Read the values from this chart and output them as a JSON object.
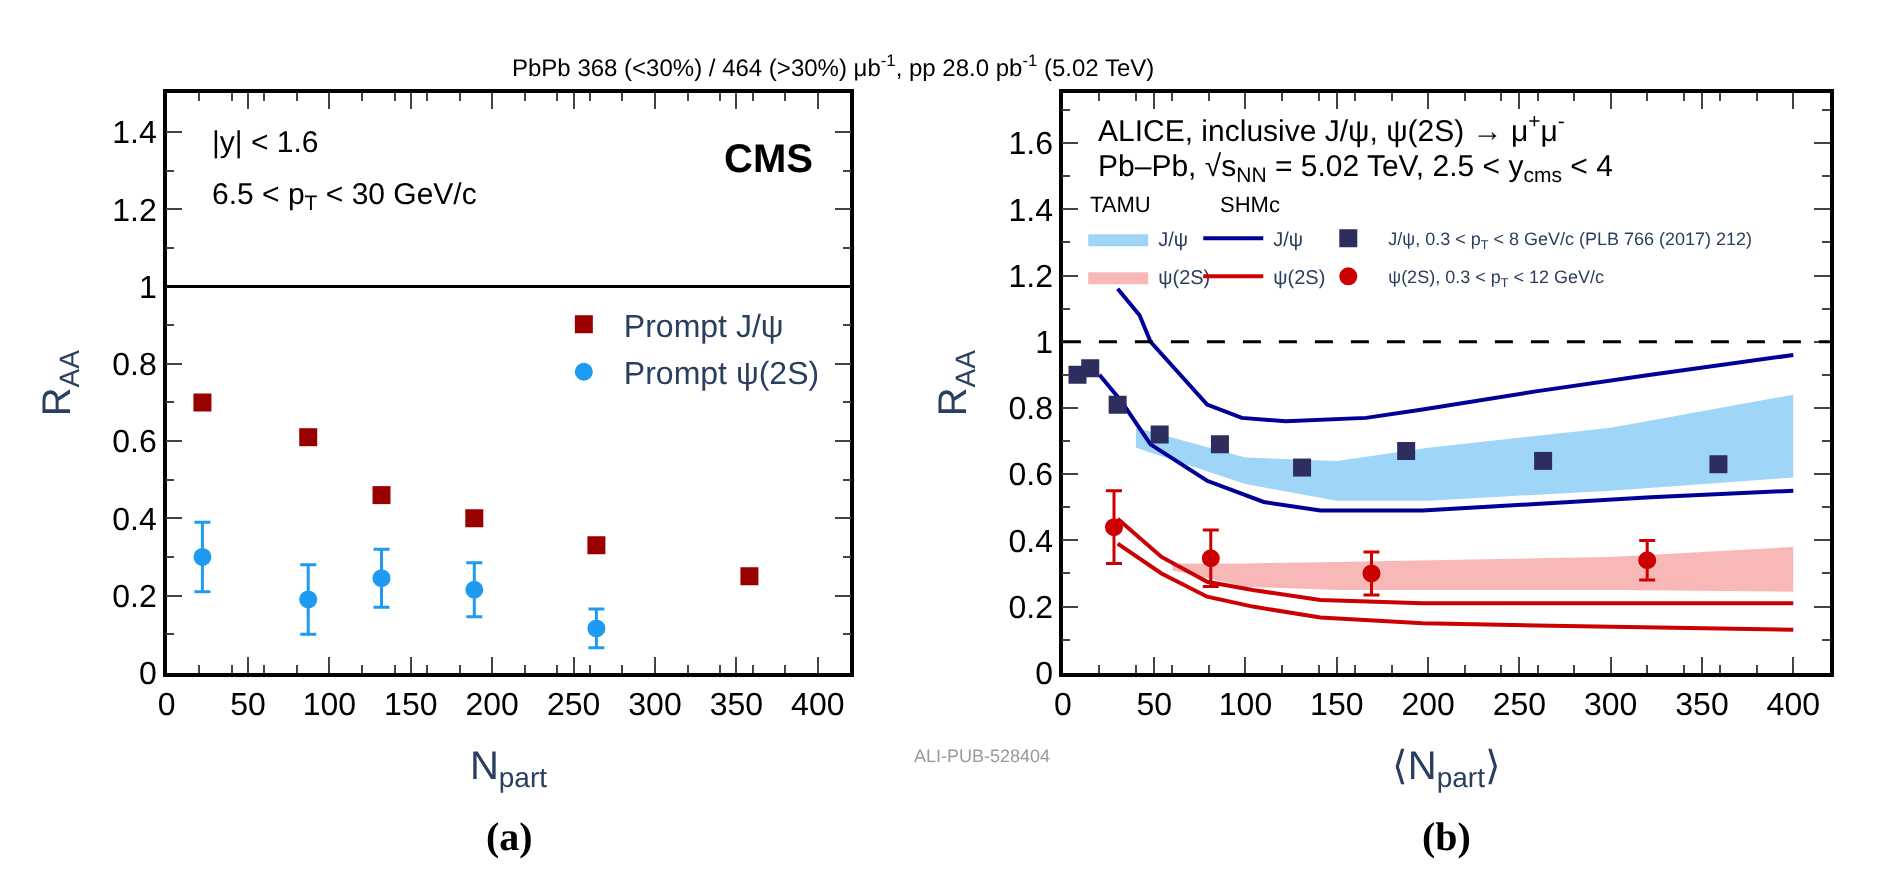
{
  "chart_data": [
    {
      "type": "scatter",
      "title": "PbPb 368 (<30%) / 464 (>30%) μb$^{-1}$, pp 28.0 pb$^{-1}$ (5.02 TeV)",
      "xlabel": "N$_{part}$",
      "ylabel": "R$_{AA}$",
      "xlim": [
        0,
        420
      ],
      "ylim": [
        0,
        1.5
      ],
      "xticks": [
        0,
        50,
        100,
        150,
        200,
        250,
        300,
        350,
        400
      ],
      "yticks": [
        0,
        0.2,
        0.4,
        0.6,
        0.8,
        1,
        1.2,
        1.4
      ],
      "legend": "right",
      "ref_lines": [
        {
          "axis": "y",
          "value": 1,
          "color": "#000000",
          "line_style": "solid"
        }
      ],
      "annotations": [
        "|y| < 1.6",
        "6.5 < p$_{T}$ < 30 GeV/c",
        "CMS",
        "(a)"
      ],
      "series": [
        {
          "name": "Prompt J/ψ",
          "color": "#990000",
          "marker": "square",
          "x": [
            22,
            87,
            132,
            189,
            264,
            358
          ],
          "values": [
            0.7,
            0.61,
            0.46,
            0.4,
            0.33,
            0.25
          ]
        },
        {
          "name": "Prompt ψ(2S)",
          "color": "#1e9bf0",
          "marker": "circle",
          "x": [
            22,
            87,
            132,
            189,
            264
          ],
          "values": [
            0.3,
            0.19,
            0.245,
            0.215,
            0.115
          ],
          "errors": [
            0.09,
            0.09,
            0.075,
            0.07,
            0.05
          ]
        }
      ]
    },
    {
      "type": "scatter",
      "xlabel": "⟨N$_{part}$⟩",
      "ylabel": "R$_{AA}$",
      "xlim": [
        0,
        420
      ],
      "ylim": [
        0,
        1.75
      ],
      "xticks": [
        0,
        50,
        100,
        150,
        200,
        250,
        300,
        350,
        400
      ],
      "yticks": [
        0,
        0.2,
        0.4,
        0.6,
        0.8,
        1,
        1.2,
        1.4,
        1.6
      ],
      "legend": "top",
      "ref_lines": [
        {
          "axis": "y",
          "value": 1,
          "color": "#000000",
          "line_style": "dashed"
        }
      ],
      "annotations": [
        "ALICE, inclusive J/ψ, ψ(2S) → μ$^{+}$μ$^{-}$",
        "Pb–Pb, √s$_{NN}$ = 5.02 TeV, 2.5 < y$_{cms}$ < 4",
        "TAMU",
        "SHMc",
        "ALI-PUB-528404",
        "(b)"
      ],
      "series": [
        {
          "name": "J/ψ",
          "type": "line",
          "color": "#9fd6f7",
          "x": [
            40,
            100,
            150,
            200,
            300,
            400
          ],
          "values": [
            null,
            null,
            null,
            null,
            null,
            null
          ],
          "lower": [
            0.68,
            0.57,
            0.52,
            0.52,
            0.55,
            0.59
          ],
          "upper": [
            0.74,
            0.65,
            0.64,
            0.68,
            0.74,
            0.84
          ]
        },
        {
          "name": "ψ(2S)",
          "type": "line",
          "color": "#f9b8b8",
          "x": [
            60,
            100,
            150,
            200,
            300,
            400
          ],
          "values": [
            null,
            null,
            null,
            null,
            null,
            null
          ],
          "lower": [
            0.31,
            0.26,
            0.25,
            0.25,
            0.25,
            0.245
          ],
          "upper": [
            0.33,
            0.33,
            0.335,
            0.34,
            0.35,
            0.38
          ]
        },
        {
          "name": "J/ψ",
          "type": "line",
          "color": "#000099",
          "marker": "none",
          "x": [
            30,
            42,
            48,
            79,
            98,
            122,
            166,
            197,
            259,
            322,
            400
          ],
          "values": [
            1.16,
            1.08,
            1.0,
            0.81,
            0.77,
            0.76,
            0.77,
            0.795,
            0.85,
            0.9,
            0.96
          ]
        },
        {
          "type": "line",
          "color": "#000099",
          "marker": "none",
          "x": [
            20,
            32,
            48,
            79,
            110,
            141,
            197,
            259,
            322,
            400
          ],
          "values": [
            0.9,
            0.82,
            0.69,
            0.58,
            0.516,
            0.49,
            0.49,
            0.51,
            0.53,
            0.55
          ]
        },
        {
          "name": "ψ(2S)",
          "type": "line",
          "color": "#cc0000",
          "marker": "none",
          "x": [
            30,
            54,
            79,
            104,
            141,
            197,
            400
          ],
          "values": [
            0.465,
            0.35,
            0.275,
            0.25,
            0.22,
            0.21,
            0.21
          ]
        },
        {
          "type": "line",
          "color": "#cc0000",
          "marker": "none",
          "x": [
            30,
            54,
            79,
            104,
            141,
            197,
            259,
            400
          ],
          "values": [
            0.39,
            0.3,
            0.23,
            0.2,
            0.167,
            0.15,
            0.143,
            0.13
          ]
        },
        {
          "name": "J/ψ, 0.3 < p$_{T}$ < 8 GeV/c (PLB 766 (2017) 212)",
          "color": "#2d2d5e",
          "marker": "square",
          "x": [
            8,
            15,
            30,
            53,
            86,
            131,
            188,
            263,
            359
          ],
          "values": [
            0.9,
            0.92,
            0.81,
            0.72,
            0.69,
            0.62,
            0.67,
            0.64,
            0.63
          ]
        },
        {
          "name": "ψ(2S), 0.3 < p$_{T}$ < 12 GeV/c",
          "color": "#cc0000",
          "marker": "circle",
          "x": [
            28,
            81,
            169,
            320
          ],
          "values": [
            0.44,
            0.346,
            0.3,
            0.34
          ],
          "errors": [
            0.11,
            0.085,
            0.065,
            0.06
          ]
        }
      ]
    }
  ]
}
